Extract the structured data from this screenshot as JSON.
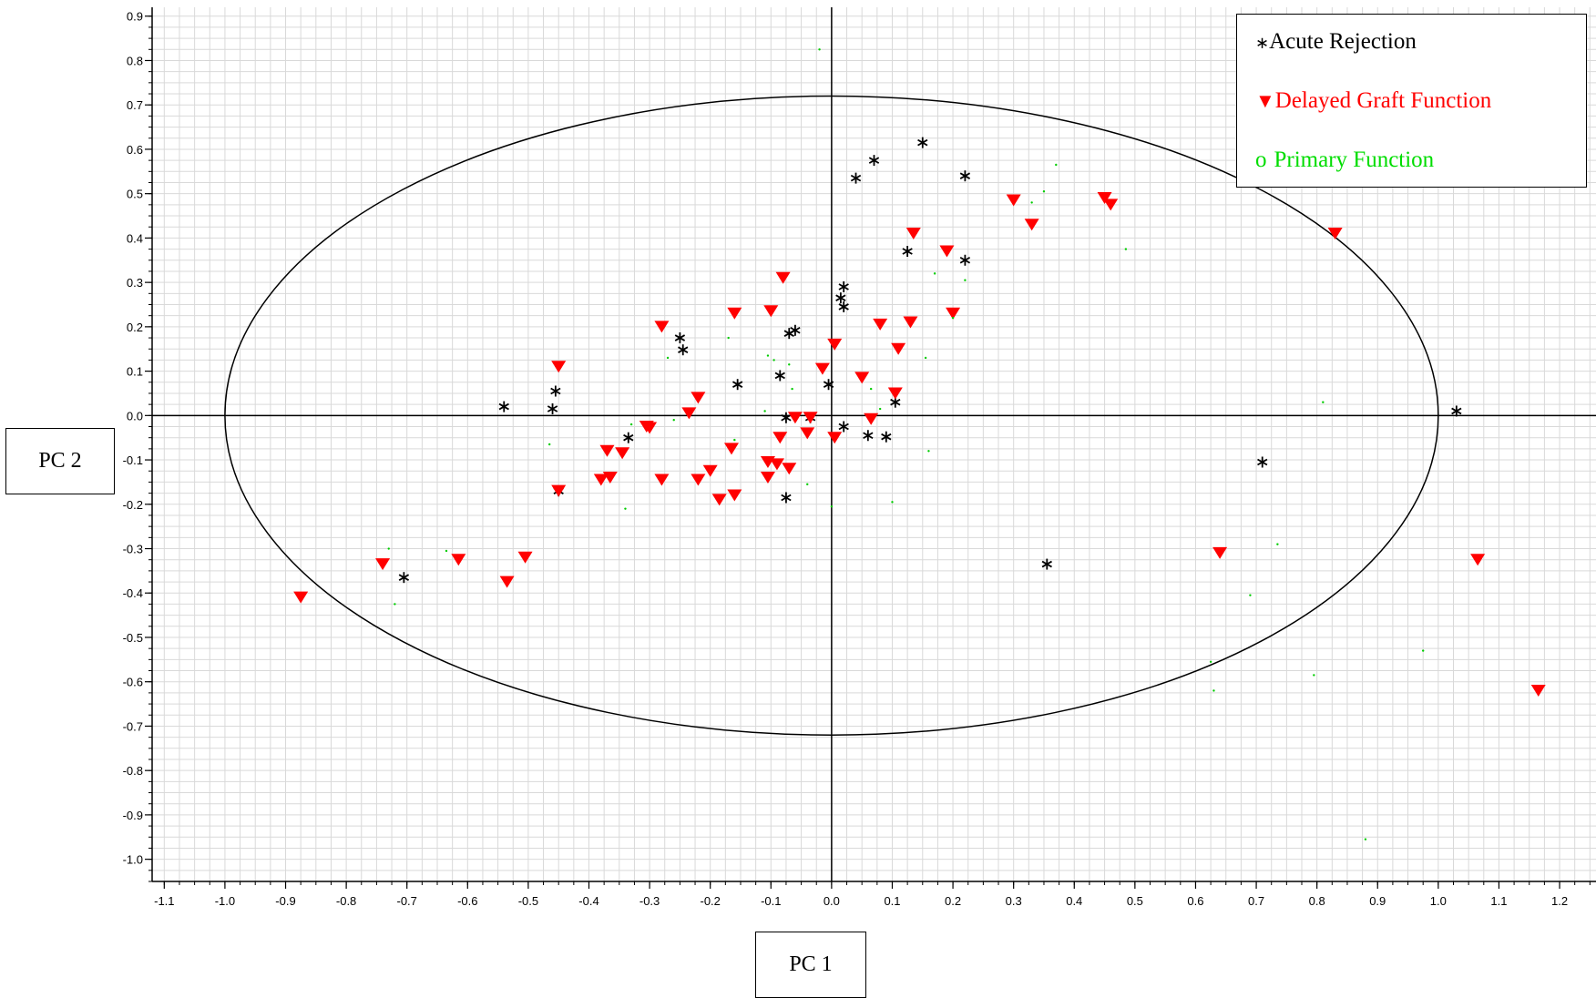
{
  "chart_data": {
    "type": "scatter",
    "xlabel": "PC 1",
    "ylabel": "PC 2",
    "xlim": [
      -1.12,
      1.26
    ],
    "ylim": [
      -1.05,
      0.92
    ],
    "x_ticks": [
      "-1.1",
      "-1.0",
      "-0.9",
      "-0.8",
      "-0.7",
      "-0.6",
      "-0.5",
      "-0.4",
      "-0.3",
      "-0.2",
      "-0.1",
      "0.0",
      "0.1",
      "0.2",
      "0.3",
      "0.4",
      "0.5",
      "0.6",
      "0.7",
      "0.8",
      "0.9",
      "1.0",
      "1.1",
      "1.2"
    ],
    "y_ticks": [
      "0.9",
      "0.8",
      "0.7",
      "0.6",
      "0.5",
      "0.4",
      "0.3",
      "0.2",
      "0.1",
      "0.0",
      "-0.1",
      "-0.2",
      "-0.3",
      "-0.4",
      "-0.5",
      "-0.6",
      "-0.7",
      "-0.8",
      "-0.9",
      "-1.0"
    ],
    "grid": true,
    "legend_position": "top-right",
    "ellipse": {
      "cx": 0.0,
      "cy": 0.0,
      "rx": 1.0,
      "ry": 0.72
    },
    "colors": {
      "acute": "#000000",
      "delayed": "#ff0000",
      "primary": "#00cc00"
    },
    "series": [
      {
        "name": "Acute Rejection",
        "legend_symbol": "∗",
        "marker": "asterisk",
        "points": [
          [
            0.15,
            0.615
          ],
          [
            0.07,
            0.575
          ],
          [
            0.22,
            0.54
          ],
          [
            0.04,
            0.535
          ],
          [
            0.125,
            0.37
          ],
          [
            0.22,
            0.35
          ],
          [
            0.02,
            0.29
          ],
          [
            0.015,
            0.265
          ],
          [
            0.02,
            0.245
          ],
          [
            -0.25,
            0.175
          ],
          [
            -0.245,
            0.148
          ],
          [
            -0.06,
            0.192
          ],
          [
            -0.07,
            0.185
          ],
          [
            -0.085,
            0.09
          ],
          [
            -0.155,
            0.07
          ],
          [
            -0.005,
            0.07
          ],
          [
            -0.455,
            0.055
          ],
          [
            -0.54,
            0.02
          ],
          [
            -0.46,
            0.015
          ],
          [
            0.105,
            0.03
          ],
          [
            -0.075,
            -0.005
          ],
          [
            -0.035,
            -0.005
          ],
          [
            0.02,
            -0.025
          ],
          [
            0.06,
            -0.045
          ],
          [
            0.09,
            -0.048
          ],
          [
            -0.335,
            -0.05
          ],
          [
            -0.45,
            -0.17
          ],
          [
            -0.075,
            -0.185
          ],
          [
            -0.705,
            -0.365
          ],
          [
            0.355,
            -0.335
          ],
          [
            0.71,
            -0.105
          ],
          [
            1.03,
            0.01
          ]
        ]
      },
      {
        "name": "Delayed Graft Function",
        "legend_symbol": "▼",
        "marker": "triangle-down",
        "points": [
          [
            0.3,
            0.485
          ],
          [
            0.45,
            0.49
          ],
          [
            0.46,
            0.475
          ],
          [
            0.33,
            0.43
          ],
          [
            0.83,
            0.41
          ],
          [
            0.135,
            0.41
          ],
          [
            0.19,
            0.37
          ],
          [
            -0.08,
            0.31
          ],
          [
            -0.1,
            0.235
          ],
          [
            -0.16,
            0.23
          ],
          [
            0.2,
            0.23
          ],
          [
            -0.28,
            0.2
          ],
          [
            0.08,
            0.205
          ],
          [
            0.13,
            0.21
          ],
          [
            0.005,
            0.16
          ],
          [
            0.11,
            0.15
          ],
          [
            -0.45,
            0.11
          ],
          [
            -0.015,
            0.105
          ],
          [
            0.05,
            0.085
          ],
          [
            0.105,
            0.05
          ],
          [
            -0.22,
            0.04
          ],
          [
            -0.235,
            0.005
          ],
          [
            -0.06,
            -0.005
          ],
          [
            -0.035,
            -0.005
          ],
          [
            0.065,
            -0.008
          ],
          [
            -0.305,
            -0.025
          ],
          [
            -0.3,
            -0.028
          ],
          [
            -0.04,
            -0.04
          ],
          [
            -0.085,
            -0.05
          ],
          [
            0.005,
            -0.05
          ],
          [
            -0.37,
            -0.08
          ],
          [
            -0.345,
            -0.085
          ],
          [
            -0.165,
            -0.075
          ],
          [
            -0.105,
            -0.105
          ],
          [
            -0.09,
            -0.11
          ],
          [
            -0.07,
            -0.12
          ],
          [
            -0.2,
            -0.125
          ],
          [
            -0.365,
            -0.14
          ],
          [
            -0.38,
            -0.145
          ],
          [
            -0.105,
            -0.14
          ],
          [
            -0.28,
            -0.145
          ],
          [
            -0.22,
            -0.145
          ],
          [
            -0.45,
            -0.17
          ],
          [
            -0.16,
            -0.18
          ],
          [
            -0.185,
            -0.19
          ],
          [
            -0.74,
            -0.335
          ],
          [
            -0.615,
            -0.325
          ],
          [
            -0.505,
            -0.32
          ],
          [
            -0.535,
            -0.375
          ],
          [
            -0.875,
            -0.41
          ],
          [
            0.64,
            -0.31
          ],
          [
            1.065,
            -0.325
          ],
          [
            1.165,
            -0.62
          ]
        ]
      },
      {
        "name": "Primary Function",
        "legend_symbol": "o",
        "marker": "dot",
        "points": [
          [
            -0.02,
            0.825
          ],
          [
            0.37,
            0.565
          ],
          [
            0.35,
            0.505
          ],
          [
            0.33,
            0.48
          ],
          [
            0.485,
            0.375
          ],
          [
            0.17,
            0.32
          ],
          [
            0.22,
            0.305
          ],
          [
            0.2,
            0.22
          ],
          [
            -0.17,
            0.175
          ],
          [
            -0.105,
            0.135
          ],
          [
            -0.095,
            0.125
          ],
          [
            -0.27,
            0.13
          ],
          [
            0.155,
            0.13
          ],
          [
            -0.07,
            0.115
          ],
          [
            -0.065,
            0.06
          ],
          [
            0.065,
            0.06
          ],
          [
            -0.26,
            -0.01
          ],
          [
            -0.11,
            0.01
          ],
          [
            0.08,
            0.015
          ],
          [
            0.81,
            0.03
          ],
          [
            -0.33,
            -0.02
          ],
          [
            -0.465,
            -0.065
          ],
          [
            -0.16,
            -0.055
          ],
          [
            0.16,
            -0.08
          ],
          [
            -0.34,
            -0.21
          ],
          [
            0.0,
            -0.205
          ],
          [
            0.1,
            -0.195
          ],
          [
            -0.04,
            -0.155
          ],
          [
            -0.73,
            -0.3
          ],
          [
            -0.635,
            -0.305
          ],
          [
            -0.72,
            -0.425
          ],
          [
            0.735,
            -0.29
          ],
          [
            0.69,
            -0.405
          ],
          [
            0.975,
            -0.53
          ],
          [
            0.625,
            -0.555
          ],
          [
            0.795,
            -0.585
          ],
          [
            0.63,
            -0.62
          ],
          [
            0.88,
            -0.955
          ]
        ]
      }
    ]
  }
}
